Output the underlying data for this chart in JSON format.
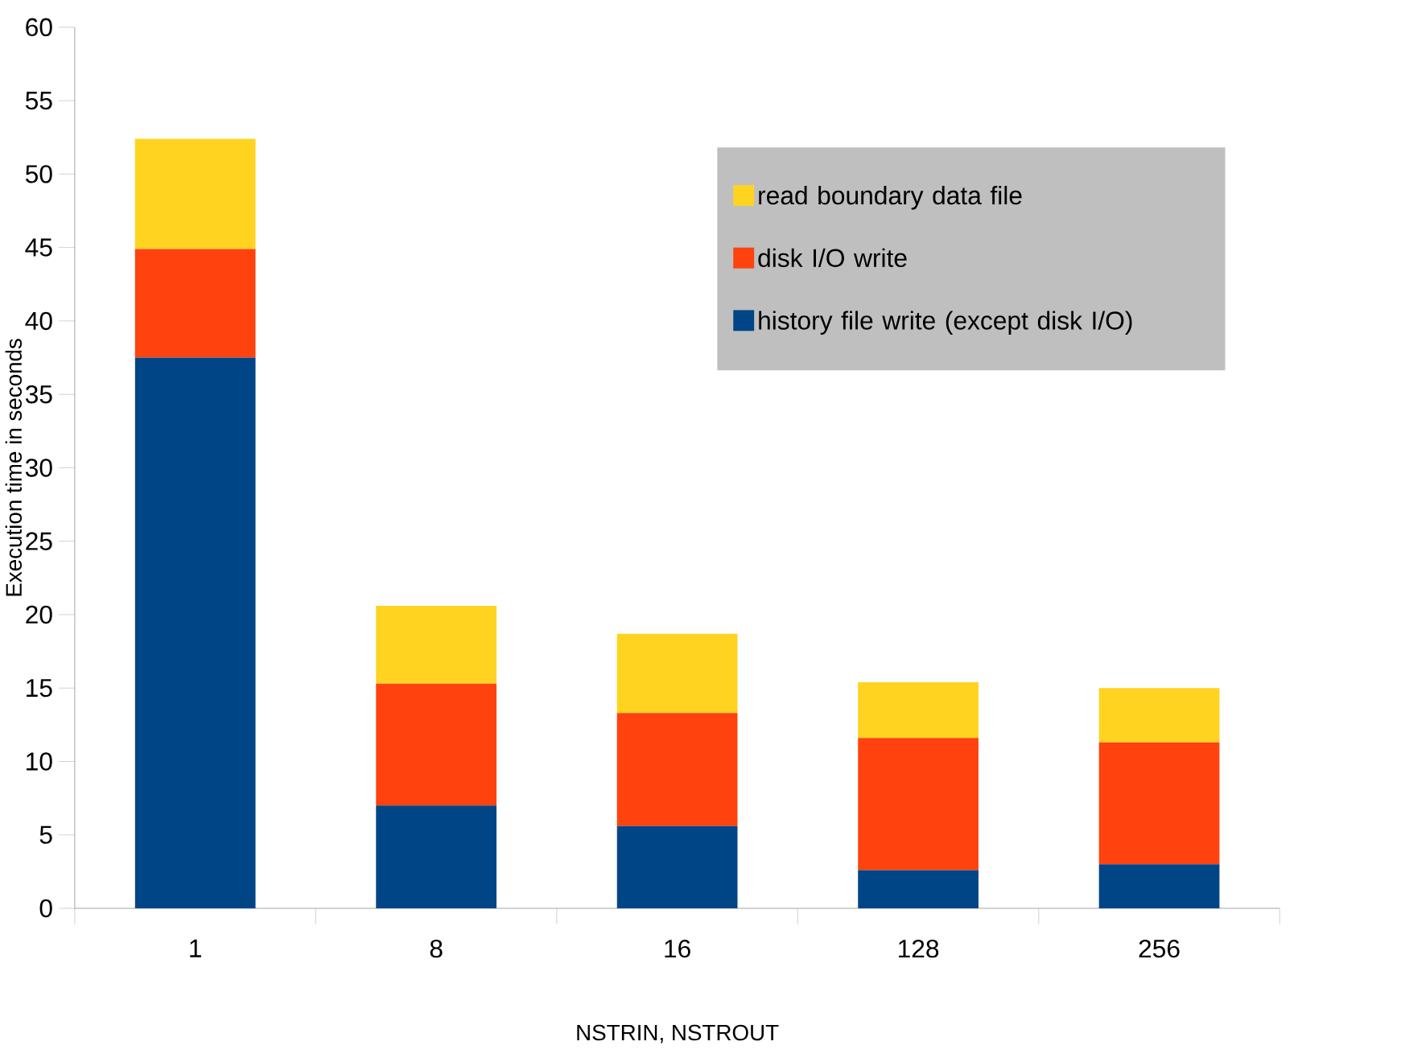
{
  "chart_data": {
    "type": "bar",
    "stacked": true,
    "xlabel": "NSTRIN, NSTROUT",
    "ylabel": "Execution time in seconds",
    "categories": [
      "1",
      "8",
      "16",
      "128",
      "256"
    ],
    "series": [
      {
        "name": "history file write (except disk I/O)",
        "color": "#004586",
        "values": [
          37.5,
          7.0,
          5.6,
          2.6,
          3.0
        ]
      },
      {
        "name": "disk I/O write",
        "color": "#ff420e",
        "values": [
          7.4,
          8.3,
          7.7,
          9.0,
          8.3
        ]
      },
      {
        "name": "read boundary data file",
        "color": "#ffd320",
        "values": [
          7.5,
          5.3,
          5.4,
          3.8,
          3.7
        ]
      }
    ],
    "ylim": [
      0,
      60
    ],
    "yticks": [
      0,
      5,
      10,
      15,
      20,
      25,
      30,
      35,
      40,
      45,
      50,
      55,
      60
    ],
    "grid": false,
    "legend": "top right"
  }
}
